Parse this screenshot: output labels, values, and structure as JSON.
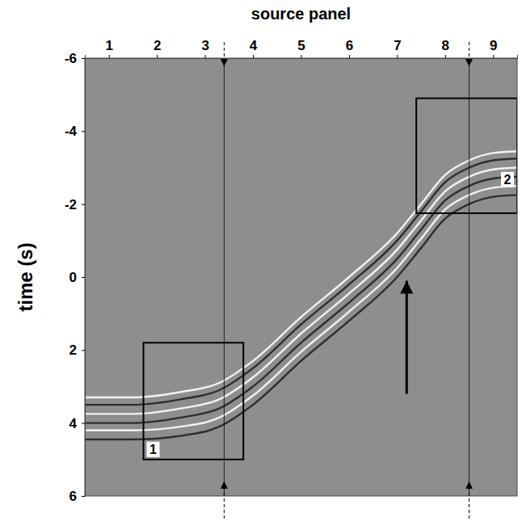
{
  "chart_data": {
    "type": "line",
    "xlabel": "source panel",
    "ylabel": "time (s)",
    "xlim": [
      0.5,
      9.5
    ],
    "ylim": [
      -6,
      6
    ],
    "xticks": [
      1,
      2,
      3,
      4,
      5,
      6,
      7,
      8,
      9
    ],
    "yticks": [
      -6,
      -4,
      -2,
      0,
      2,
      4,
      6
    ],
    "tick_labels": true,
    "series": [
      {
        "color": "#f2f2f2",
        "x": [
          0.5,
          1.5,
          2.5,
          3.3,
          4,
          5,
          6,
          7,
          7.5,
          8,
          8.5,
          9,
          9.5
        ],
        "values": [
          3.3,
          3.3,
          3.15,
          2.9,
          2.3,
          1.1,
          0,
          -1.2,
          -2.0,
          -2.8,
          -3.2,
          -3.4,
          -3.45
        ]
      },
      {
        "color": "#2e2e2e",
        "x": [
          0.5,
          1.5,
          2.5,
          3.3,
          4,
          5,
          6,
          7,
          7.5,
          8,
          8.5,
          9,
          9.5
        ],
        "values": [
          3.5,
          3.5,
          3.35,
          3.1,
          2.5,
          1.3,
          0.2,
          -1.0,
          -1.8,
          -2.6,
          -3.0,
          -3.2,
          -3.25
        ]
      },
      {
        "color": "#f2f2f2",
        "x": [
          0.5,
          1.5,
          2.5,
          3.3,
          4,
          5,
          6,
          7,
          7.5,
          8,
          8.5,
          9,
          9.5
        ],
        "values": [
          3.75,
          3.75,
          3.6,
          3.35,
          2.75,
          1.55,
          0.45,
          -0.75,
          -1.55,
          -2.35,
          -2.75,
          -2.95,
          -3.0
        ]
      },
      {
        "color": "#2e2e2e",
        "x": [
          0.5,
          1.5,
          2.5,
          3.3,
          4,
          5,
          6,
          7,
          7.5,
          8,
          8.5,
          9,
          9.5
        ],
        "values": [
          4.0,
          4.0,
          3.85,
          3.6,
          3.0,
          1.8,
          0.7,
          -0.5,
          -1.3,
          -2.1,
          -2.5,
          -2.7,
          -2.75
        ]
      },
      {
        "color": "#f2f2f2",
        "x": [
          0.5,
          1.5,
          2.5,
          3.3,
          4,
          5,
          6,
          7,
          7.5,
          8,
          8.5,
          9,
          9.5
        ],
        "values": [
          4.2,
          4.2,
          4.1,
          3.85,
          3.25,
          2.05,
          0.95,
          -0.25,
          -1.05,
          -1.85,
          -2.25,
          -2.45,
          -2.5
        ]
      },
      {
        "color": "#2e2e2e",
        "x": [
          0.5,
          1.5,
          2.5,
          3.3,
          4,
          5,
          6,
          7,
          7.5,
          8,
          8.5,
          9,
          9.5
        ],
        "values": [
          4.45,
          4.45,
          4.35,
          4.1,
          3.5,
          2.3,
          1.2,
          0,
          -0.8,
          -1.6,
          -2.0,
          -2.2,
          -2.25
        ]
      }
    ],
    "vlines": [
      3.4,
      8.5
    ],
    "boxes": [
      {
        "text": "1",
        "x": [
          1.72,
          3.8
        ],
        "y": [
          1.8,
          5.0
        ]
      },
      {
        "text": "2",
        "x": [
          7.4,
          9.5
        ],
        "y": [
          -4.9,
          -1.75
        ]
      }
    ],
    "arrow": {
      "x": 7.2,
      "y": [
        3.2,
        0.1
      ]
    }
  }
}
